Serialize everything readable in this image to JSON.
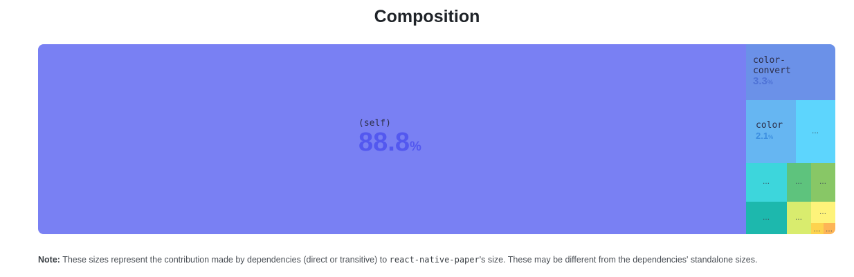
{
  "chart_data": {
    "type": "treemap",
    "title": "Composition",
    "items": [
      {
        "label": "(self)",
        "value": 88.8,
        "display_value": "88.8",
        "unit": "%",
        "color": "#7980f3",
        "text_color": "#5358ef"
      },
      {
        "label": "color-\nconvert",
        "value": 3.3,
        "display_value": "3.3",
        "unit": "%",
        "color": "#6b91e8",
        "text_color": "#4f73d6"
      },
      {
        "label": "color",
        "value": 2.1,
        "display_value": "2.1",
        "unit": "%",
        "color": "#66b6f2",
        "text_color": "#3d8fe0"
      },
      {
        "label": "…",
        "color": "#5dd5fd"
      },
      {
        "label": "…",
        "color": "#3dd6dc"
      },
      {
        "label": "…",
        "color": "#5ec37d"
      },
      {
        "label": "…",
        "color": "#88c766"
      },
      {
        "label": "…",
        "color": "#1db8ad"
      },
      {
        "label": "…",
        "color": "#d9ec6e"
      },
      {
        "label": "…",
        "color": "#fef37a"
      },
      {
        "label": "…",
        "color": "#fdd34f"
      },
      {
        "label": "…",
        "color": "#fdb556"
      }
    ]
  },
  "note": {
    "bold": "Note:",
    "text_before": " These sizes represent the contribution made by dependencies (direct or transitive) to ",
    "code": "react-native-paper",
    "text_after": "'s size. These may be different from the dependencies' standalone sizes."
  }
}
